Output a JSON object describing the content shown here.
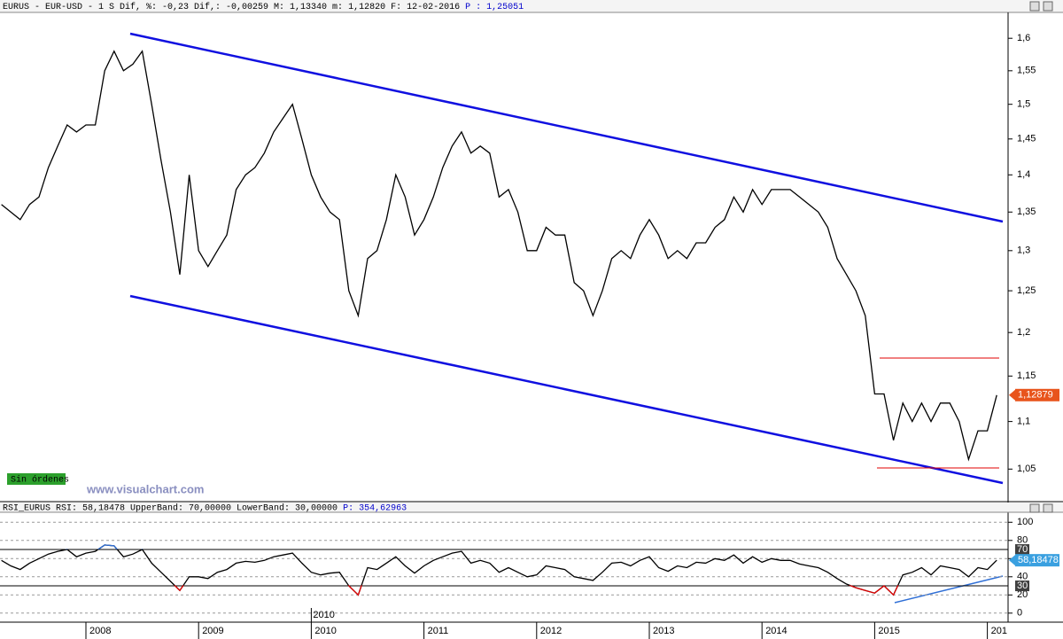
{
  "header": {
    "text": "EURUS - EUR-USD -  1 S Dif, %: -0,23 Dif,: -0,00259 M: 1,13340 m: 1,12820 F: 12-02-2016",
    "p": "P : 1,25051"
  },
  "badge": "Sin órdenes",
  "watermark": "www.visualchart.com",
  "chart_data": [
    {
      "type": "line",
      "log_scale": true,
      "color": "#000000",
      "categories": [
        null,
        null,
        null,
        null,
        null,
        null,
        null,
        null,
        null,
        "2008",
        null,
        null,
        null,
        null,
        null,
        null,
        null,
        null,
        null,
        null,
        null,
        "2009",
        null,
        null,
        null,
        null,
        null,
        null,
        null,
        null,
        null,
        null,
        null,
        "2010",
        null,
        null,
        null,
        null,
        null,
        null,
        null,
        null,
        null,
        null,
        null,
        "2011",
        null,
        null,
        null,
        null,
        null,
        null,
        null,
        null,
        null,
        null,
        null,
        "2012",
        null,
        null,
        null,
        null,
        null,
        null,
        null,
        null,
        null,
        null,
        null,
        "2013",
        null,
        null,
        null,
        null,
        null,
        null,
        null,
        null,
        null,
        null,
        null,
        "2014",
        null,
        null,
        null,
        null,
        null,
        null,
        null,
        null,
        null,
        null,
        null,
        "2015",
        null,
        null,
        null,
        null,
        null,
        null,
        null,
        null,
        null,
        null,
        null,
        "201",
        null
      ],
      "values": [
        1.36,
        1.35,
        1.34,
        1.36,
        1.37,
        1.41,
        1.44,
        1.47,
        1.46,
        1.47,
        1.47,
        1.55,
        1.58,
        1.55,
        1.56,
        1.58,
        1.5,
        1.42,
        1.35,
        1.27,
        1.4,
        1.3,
        1.28,
        1.3,
        1.32,
        1.38,
        1.4,
        1.41,
        1.43,
        1.46,
        1.48,
        1.5,
        1.45,
        1.4,
        1.37,
        1.35,
        1.34,
        1.25,
        1.22,
        1.29,
        1.3,
        1.34,
        1.4,
        1.37,
        1.32,
        1.34,
        1.37,
        1.41,
        1.44,
        1.46,
        1.43,
        1.44,
        1.43,
        1.37,
        1.38,
        1.35,
        1.3,
        1.3,
        1.33,
        1.32,
        1.32,
        1.26,
        1.25,
        1.22,
        1.25,
        1.29,
        1.3,
        1.29,
        1.32,
        1.34,
        1.32,
        1.29,
        1.3,
        1.29,
        1.31,
        1.31,
        1.33,
        1.34,
        1.37,
        1.35,
        1.38,
        1.36,
        1.38,
        1.38,
        1.38,
        1.37,
        1.36,
        1.35,
        1.33,
        1.29,
        1.27,
        1.25,
        1.22,
        1.13,
        1.13,
        1.08,
        1.12,
        1.1,
        1.12,
        1.1,
        1.12,
        1.12,
        1.1,
        1.06,
        1.09,
        1.09,
        1.12879
      ],
      "ylim": [
        1.018,
        1.641
      ],
      "yticks": [
        {
          "value": 1.05,
          "label": "1,05"
        },
        {
          "value": 1.1,
          "label": "1,1"
        },
        {
          "value": 1.15,
          "label": "1,15"
        },
        {
          "value": 1.2,
          "label": "1,2"
        },
        {
          "value": 1.25,
          "label": "1,25"
        },
        {
          "value": 1.3,
          "label": "1,3"
        },
        {
          "value": 1.35,
          "label": "1,35"
        },
        {
          "value": 1.4,
          "label": "1,4"
        },
        {
          "value": 1.45,
          "label": "1,45"
        },
        {
          "value": 1.5,
          "label": "1,5"
        },
        {
          "value": 1.55,
          "label": "1,55"
        },
        {
          "value": 1.6,
          "label": "1,6"
        }
      ],
      "last_price": {
        "value": 1.12879,
        "label": "1,12879",
        "color": "#e8541c"
      }
    },
    {
      "type": "line",
      "color": "#000000",
      "above_color": "#2f6fd6",
      "below_color": "#e00000",
      "title": "RSI_EURUS RSI: 58,18478 UpperBand: 70,00000 LowerBand: 30,00000",
      "title_p": "P: 354,62963",
      "values": [
        58,
        52,
        48,
        55,
        60,
        65,
        68,
        70,
        62,
        66,
        68,
        75,
        74,
        62,
        65,
        70,
        55,
        45,
        35,
        25,
        40,
        40,
        38,
        45,
        48,
        55,
        57,
        56,
        58,
        62,
        64,
        66,
        55,
        45,
        42,
        44,
        45,
        30,
        20,
        50,
        48,
        55,
        62,
        52,
        44,
        52,
        58,
        62,
        66,
        68,
        55,
        58,
        55,
        45,
        50,
        45,
        40,
        42,
        52,
        50,
        48,
        40,
        38,
        36,
        45,
        55,
        56,
        52,
        58,
        62,
        50,
        46,
        52,
        50,
        56,
        55,
        60,
        58,
        64,
        55,
        62,
        56,
        60,
        58,
        58,
        54,
        52,
        50,
        45,
        38,
        32,
        28,
        25,
        22,
        30,
        20,
        42,
        45,
        50,
        42,
        52,
        50,
        48,
        40,
        50,
        48,
        58.18478
      ],
      "ylim": [
        -8,
        111
      ],
      "yticks": [
        0,
        20,
        40,
        60,
        80,
        100
      ],
      "grid": true,
      "bands": [
        {
          "value": 70,
          "label": "70"
        },
        {
          "value": 30,
          "label": "30"
        }
      ],
      "last_value": {
        "value": 58.18478,
        "label": "58,18478",
        "color": "#3aa0e0"
      }
    }
  ]
}
